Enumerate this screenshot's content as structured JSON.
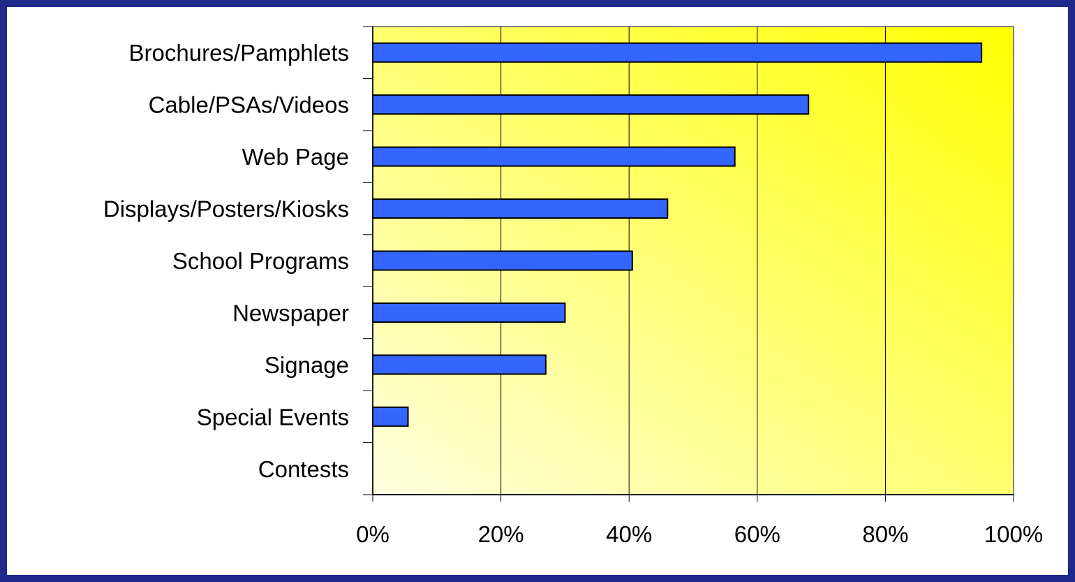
{
  "chart_data": {
    "type": "bar",
    "orientation": "horizontal",
    "title": "",
    "xlabel": "",
    "ylabel": "",
    "categories": [
      "Brochures/Pamphlets",
      "Cable/PSAs/Videos",
      "Web Page",
      "Displays/Posters/Kiosks",
      "School Programs",
      "Newspaper",
      "Signage",
      "Special Events",
      "Contests"
    ],
    "values": [
      95,
      68,
      56.5,
      46,
      40.5,
      30,
      27,
      5.5,
      0
    ],
    "xlim": [
      0,
      100
    ],
    "xticks": [
      "0%",
      "20%",
      "40%",
      "60%",
      "80%",
      "100%"
    ],
    "grid": "vertical",
    "legend": "none",
    "colors": {
      "bar_fill": "#3366ff",
      "bar_stroke": "#000000",
      "plot_gradient_top": "#ffff00",
      "plot_gradient_bottom": "#ffffe0",
      "border": "#1e2a8c"
    }
  }
}
